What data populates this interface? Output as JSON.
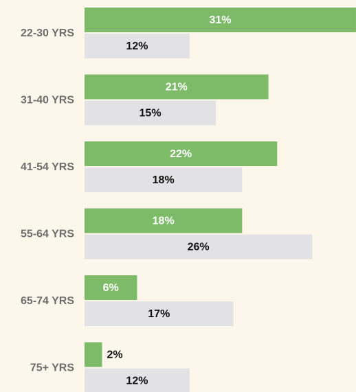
{
  "chart_data": {
    "type": "bar",
    "orientation": "horizontal",
    "categories": [
      "22-30 YRS",
      "31-40 YRS",
      "41-54 YRS",
      "55-64 YRS",
      "65-74 YRS",
      "75+ YRS"
    ],
    "series": [
      {
        "color": "#7dbb69",
        "values": [
          31,
          21,
          22,
          18,
          6,
          2
        ],
        "value_labels": [
          "31%",
          "21%",
          "22%",
          "18%",
          "6%",
          "2%"
        ]
      },
      {
        "color": "#e2e2e4",
        "values": [
          12,
          15,
          18,
          26,
          17,
          12
        ],
        "value_labels": [
          "12%",
          "15%",
          "18%",
          "26%",
          "17%",
          "12%"
        ]
      }
    ]
  }
}
